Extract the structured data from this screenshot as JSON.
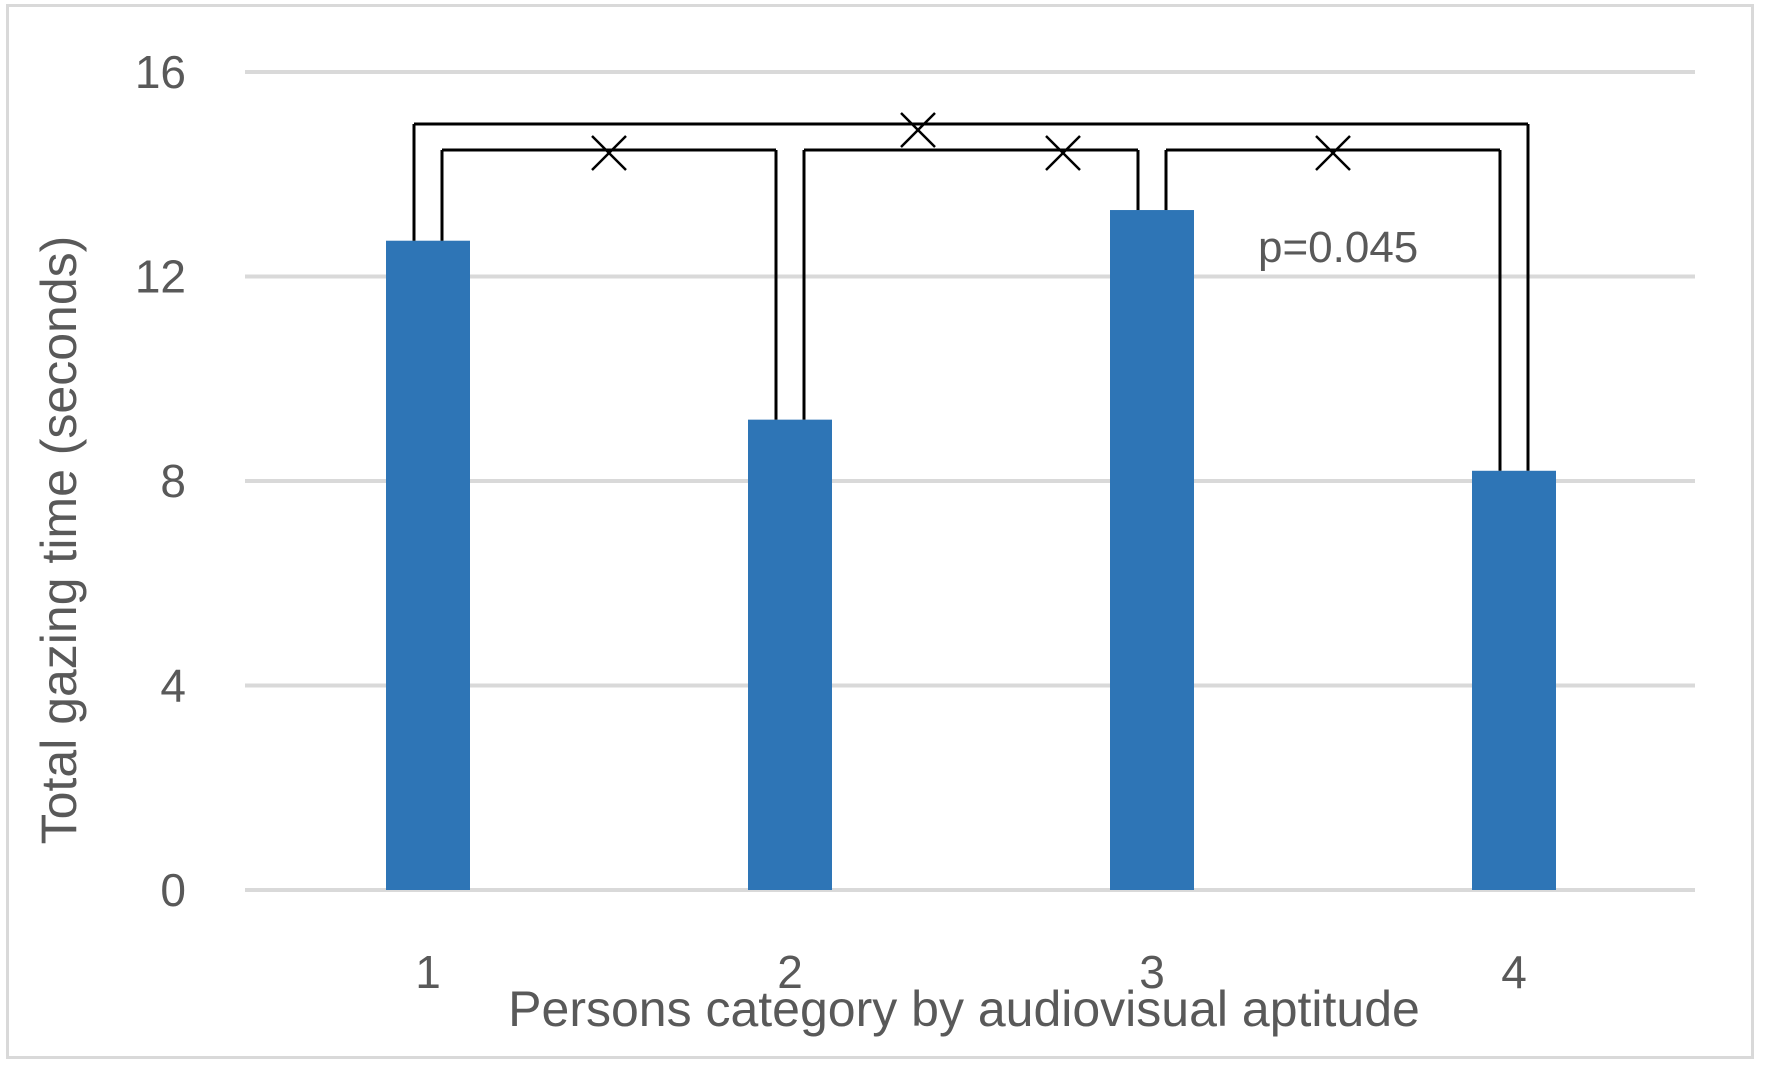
{
  "chart_data": {
    "type": "bar",
    "categories": [
      "1",
      "2",
      "3",
      "4"
    ],
    "values": [
      12.7,
      9.2,
      13.3,
      8.2
    ],
    "xlabel": "Persons category by audiovisual aptitude",
    "ylabel": "Total gazing time (seconds)",
    "ylim": [
      0,
      16
    ],
    "yticks": [
      0,
      4,
      8,
      12,
      16
    ],
    "ytick_labels": [
      "0",
      "4",
      "8",
      "12",
      "16"
    ],
    "grid": "horizontal",
    "legend": "none",
    "bar_color": "#2e75b6",
    "grid_color": "#d9d9d9",
    "text_color": "#595959",
    "bracket_color": "#000000",
    "comparisons": [
      {
        "from": "1",
        "to": "2",
        "marker": "×",
        "tier": 1
      },
      {
        "from": "2",
        "to": "3",
        "marker": "×",
        "tier": 1
      },
      {
        "from": "3",
        "to": "4",
        "marker": "×",
        "tier": 1
      },
      {
        "from": "1",
        "to": "4",
        "marker": "×",
        "tier": 2
      }
    ],
    "annotations": [
      {
        "text": "p=0.045",
        "near": "3-4"
      }
    ]
  }
}
